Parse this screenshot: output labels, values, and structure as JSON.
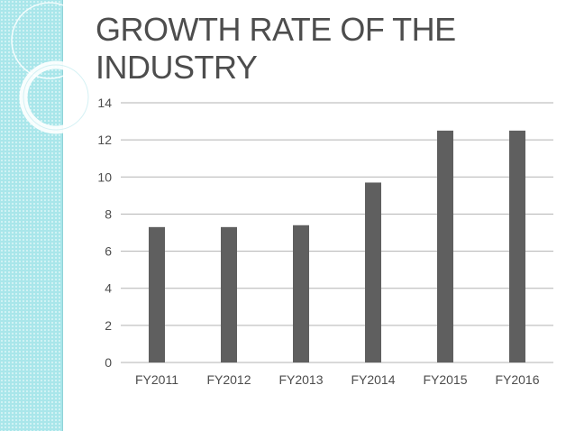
{
  "slide": {
    "title_line1": "GROWTH RATE OF THE",
    "title_line2": "INDUSTRY"
  },
  "colors": {
    "bar": "#5f5f5f",
    "grid": "#b3b3b3",
    "band": "#a9e6ea",
    "text": "#4d4d4d"
  },
  "chart_data": {
    "type": "bar",
    "categories": [
      "FY2011",
      "FY2012",
      "FY2013",
      "FY2014",
      "FY2015",
      "FY2016"
    ],
    "values": [
      7.3,
      7.3,
      7.4,
      9.7,
      12.5,
      12.5
    ],
    "title": "",
    "xlabel": "",
    "ylabel": "",
    "ylim": [
      0,
      14
    ],
    "yticks": [
      0,
      2,
      4,
      6,
      8,
      10,
      12,
      14
    ],
    "grid": true,
    "legend": "none"
  }
}
